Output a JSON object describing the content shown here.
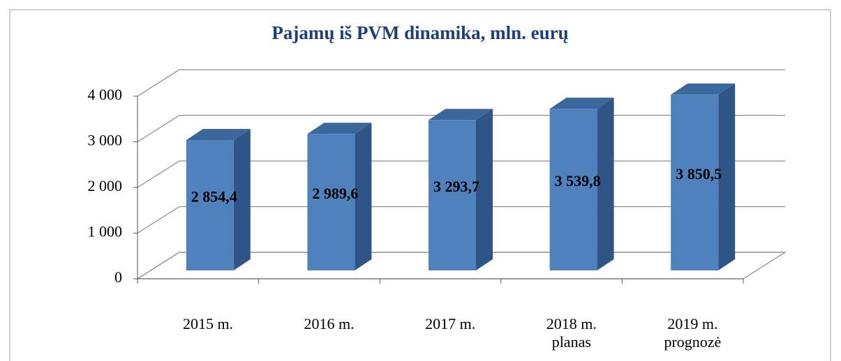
{
  "chart_data": {
    "type": "bar3d",
    "title": "Pajamų iš PVM dinamika, mln. eurų",
    "categories": [
      "2015 m.",
      "2016 m.",
      "2017 m.",
      "2018 m.\nplanas",
      "2019 m.\nprognozė"
    ],
    "values": [
      2854.4,
      2989.6,
      3293.7,
      3539.8,
      3850.5
    ],
    "value_labels": [
      "2 854,4",
      "2 989,6",
      "3 293,7",
      "3 539,8",
      "3 850,5"
    ],
    "color": "#4f81bd",
    "ylim": [
      0,
      4000
    ],
    "yticks": [
      0,
      {
        "value": 1000,
        "label": "1 000"
      },
      {
        "value": 2000,
        "label": "2 000"
      },
      {
        "value": 3000,
        "label": "3 000"
      },
      {
        "value": 4000,
        "label": "4 000"
      }
    ],
    "grid": true
  }
}
